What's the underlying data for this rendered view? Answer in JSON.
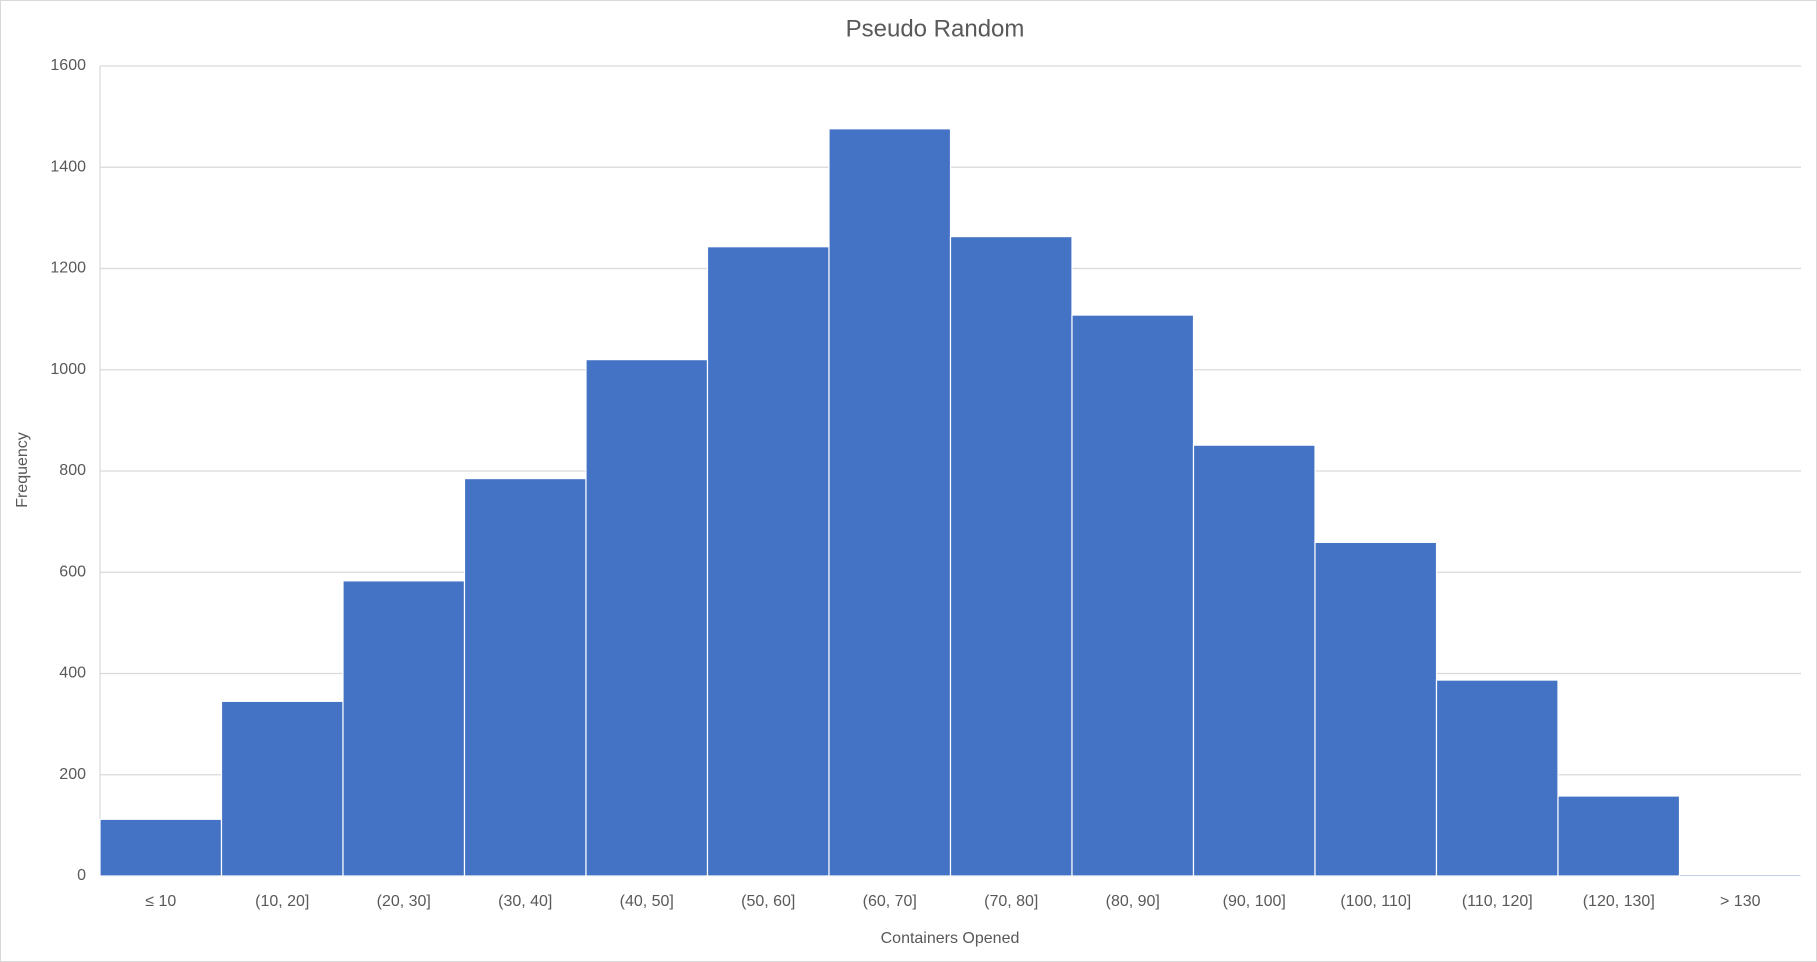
{
  "chart_data": {
    "type": "bar",
    "title": "Pseudo Random",
    "x_label": "Containers Opened",
    "y_label": "Frequency",
    "categories": [
      "≤ 10",
      "(10, 20]",
      "(20, 30]",
      "(30, 40]",
      "(40, 50]",
      "(50, 60]",
      "(60, 70]",
      "(70, 80]",
      "(80, 90]",
      "(90, 100]",
      "(100, 110]",
      "(110, 120]",
      "(120, 130]",
      "> 130"
    ],
    "values": [
      112,
      345,
      583,
      785,
      1020,
      1243,
      1476,
      1263,
      1108,
      851,
      659,
      387,
      158,
      3
    ],
    "color": "#4472c4",
    "ylim": [
      0,
      1600
    ],
    "yticks": [
      0,
      200,
      400,
      600,
      800,
      1000,
      1200,
      1400,
      1600
    ],
    "grid": true
  }
}
